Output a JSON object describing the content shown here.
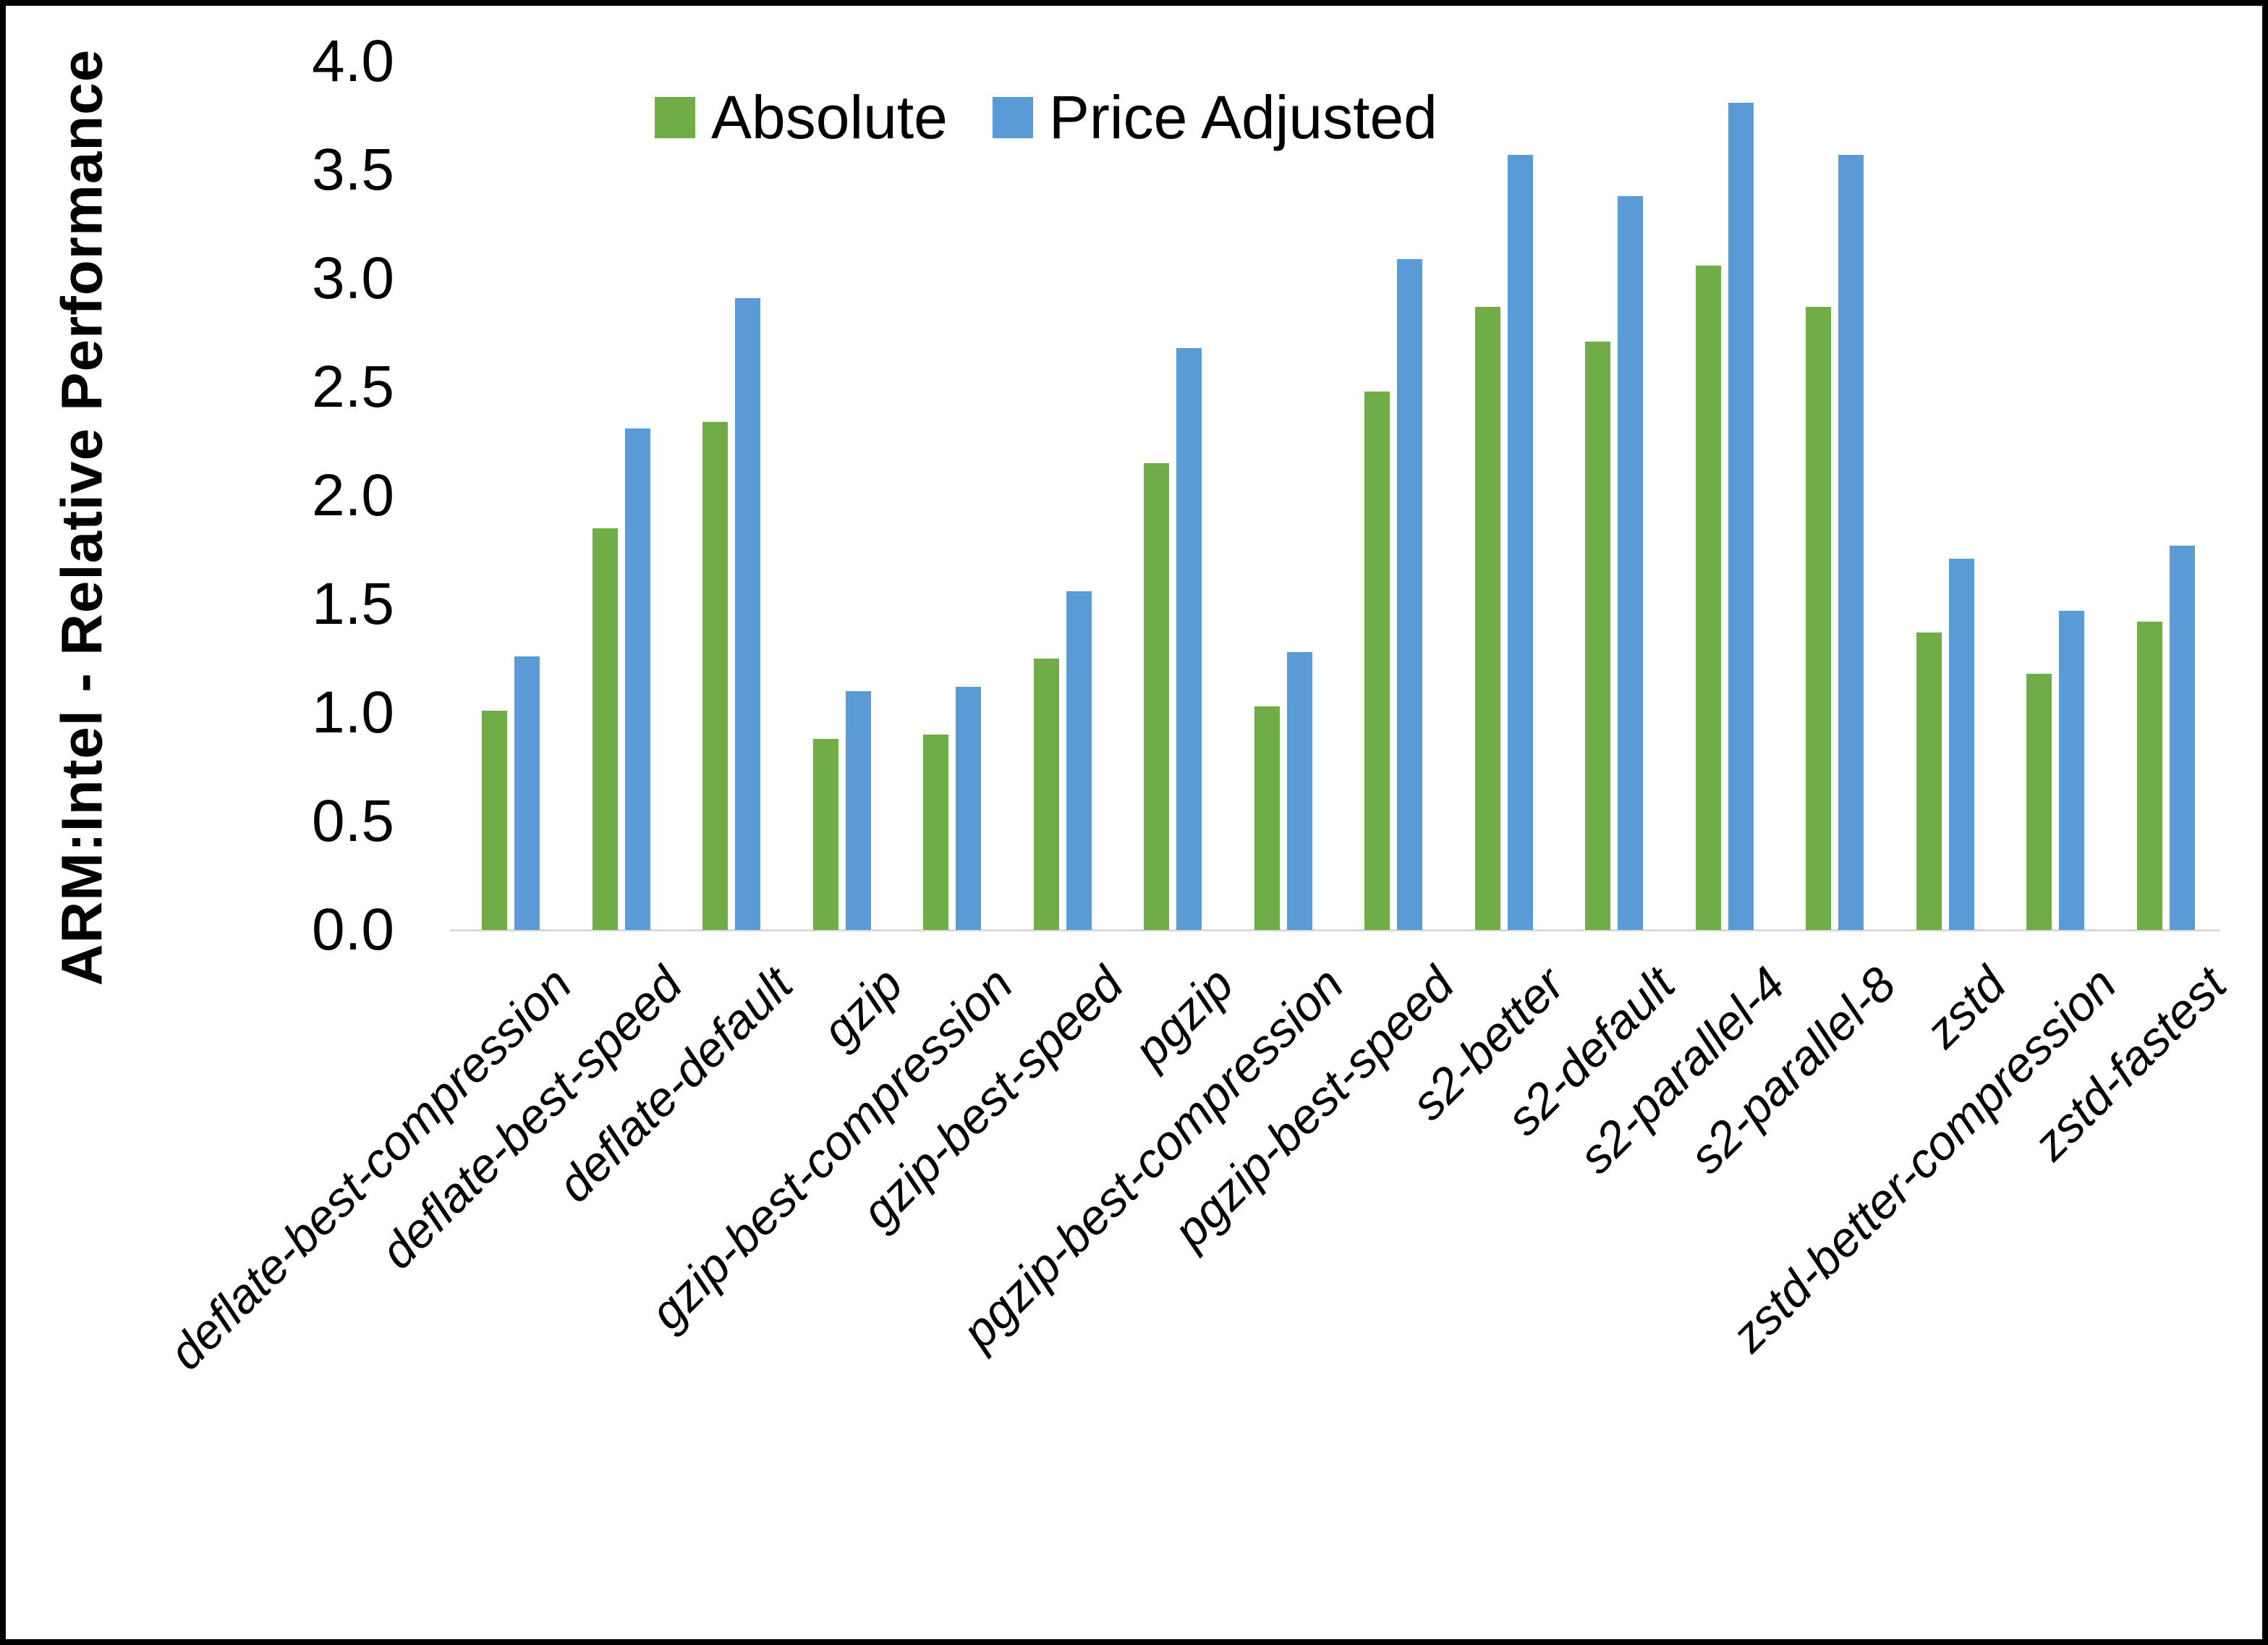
{
  "chart_data": {
    "type": "bar",
    "title": "",
    "ylabel": "ARM:Intel - Relative Performance",
    "xlabel": "",
    "ylim": [
      0,
      4.0
    ],
    "yticks": [
      4.0,
      3.5,
      3.0,
      2.5,
      2.0,
      1.5,
      1.0,
      0.5,
      0.0
    ],
    "ytick_decimals": 1,
    "grid": false,
    "legend_position": "top",
    "background_color": "#ffffff",
    "frame_color": "#000000",
    "axis_line_color": "#d9d9d9",
    "text_color": "#000000",
    "categories": [
      "deflate-best-compression",
      "deflate-best-speed",
      "deflate-default",
      "gzip",
      "gzip-best-compression",
      "gzip-best-speed",
      "pgzip",
      "pgzip-best-compression",
      "pgzip-best-speed",
      "s2-better",
      "s2-default",
      "s2-parallel-4",
      "s2-parallel-8",
      "zstd",
      "zstd-better-compression",
      "zstd-fastest"
    ],
    "series": [
      {
        "name": "Absolute",
        "color": "#70ad47",
        "values": [
          1.01,
          1.85,
          2.34,
          0.88,
          0.9,
          1.25,
          2.15,
          1.03,
          2.48,
          2.87,
          2.71,
          3.06,
          2.87,
          1.37,
          1.18,
          1.42
        ]
      },
      {
        "name": "Price Adjusted",
        "color": "#5b9bd5",
        "values": [
          1.26,
          2.31,
          2.91,
          1.1,
          1.12,
          1.56,
          2.68,
          1.28,
          3.09,
          3.57,
          3.38,
          3.81,
          3.57,
          1.71,
          1.47,
          1.77
        ]
      }
    ]
  }
}
